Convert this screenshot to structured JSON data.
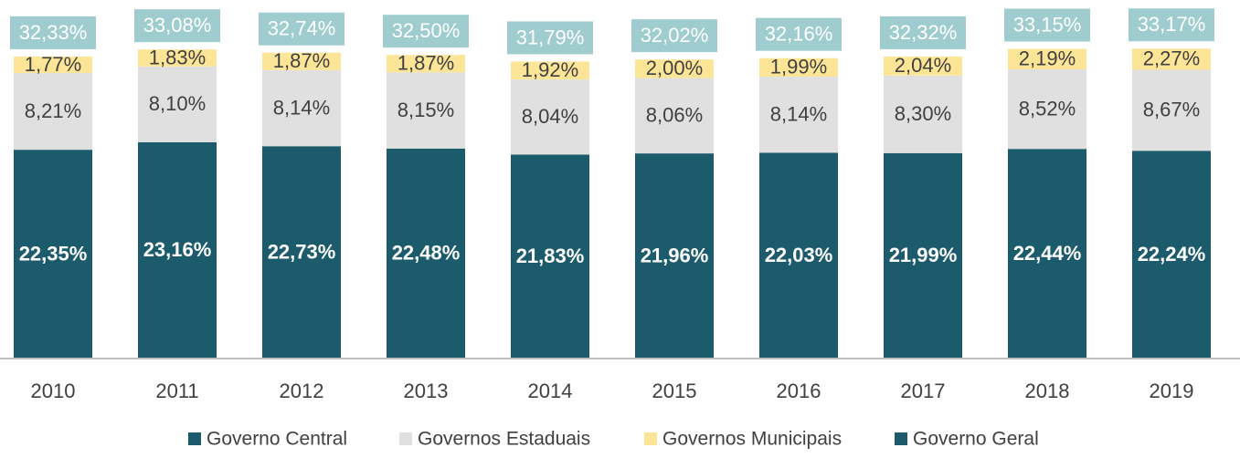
{
  "chart_data": {
    "type": "bar",
    "stacked": true,
    "categories": [
      "2010",
      "2011",
      "2012",
      "2013",
      "2014",
      "2015",
      "2016",
      "2017",
      "2018",
      "2019"
    ],
    "series": [
      {
        "name": "Governo Central",
        "color": "#1c5b6b",
        "values": [
          22.35,
          23.16,
          22.73,
          22.48,
          21.83,
          21.96,
          22.03,
          21.99,
          22.44,
          22.24
        ],
        "labels": [
          "22,35%",
          "23,16%",
          "22,73%",
          "22,48%",
          "21,83%",
          "21,96%",
          "22,03%",
          "21,99%",
          "22,44%",
          "22,24%"
        ]
      },
      {
        "name": "Governos Estaduais",
        "color": "#e0e0e0",
        "values": [
          8.21,
          8.1,
          8.14,
          8.15,
          8.04,
          8.06,
          8.14,
          8.3,
          8.52,
          8.67
        ],
        "labels": [
          "8,21%",
          "8,10%",
          "8,14%",
          "8,15%",
          "8,04%",
          "8,06%",
          "8,14%",
          "8,30%",
          "8,52%",
          "8,67%"
        ]
      },
      {
        "name": "Governos Municipais",
        "color": "#fde598",
        "values": [
          1.77,
          1.83,
          1.87,
          1.87,
          1.92,
          2.0,
          1.99,
          2.04,
          2.19,
          2.27
        ],
        "labels": [
          "1,77%",
          "1,83%",
          "1,87%",
          "1,87%",
          "1,92%",
          "2,00%",
          "1,99%",
          "2,04%",
          "2,19%",
          "2,27%"
        ]
      }
    ],
    "totals": {
      "name": "Governo Geral",
      "color": "#1c5b6b",
      "box_color": "#9fcdcf",
      "values": [
        32.33,
        33.08,
        32.74,
        32.5,
        31.79,
        32.02,
        32.16,
        32.32,
        33.15,
        33.17
      ],
      "labels": [
        "32,33%",
        "33,08%",
        "32,74%",
        "32,50%",
        "31,79%",
        "32,02%",
        "32,16%",
        "32,32%",
        "33,15%",
        "33,17%"
      ]
    },
    "ylim": [
      0,
      34
    ],
    "grid": false,
    "legend_position": "bottom"
  }
}
